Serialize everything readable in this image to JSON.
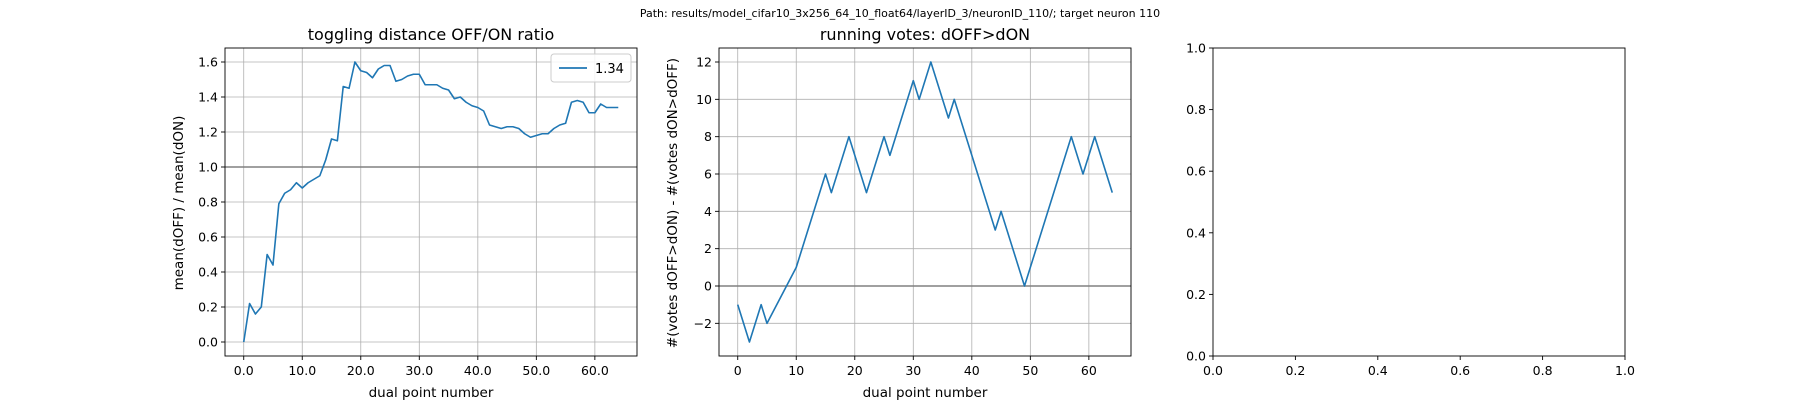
{
  "suptitle": "Path: results/model_cifar10_3x256_64_10_float64/layerID_3/neuronID_110/; target neuron 110",
  "chart_data": [
    {
      "type": "line",
      "title": "toggling distance OFF/ON ratio",
      "xlabel": "dual point number",
      "ylabel": "mean(dOFF) / mean(dON)",
      "xlim": [
        -3.2,
        67.2
      ],
      "ylim": [
        -0.08,
        1.68
      ],
      "xticks": [
        0,
        10,
        20,
        30,
        40,
        50,
        60
      ],
      "yticks": [
        0.0,
        0.2,
        0.4,
        0.6,
        0.8,
        1.0,
        1.2,
        1.4,
        1.6
      ],
      "tick_decimals": 1,
      "grid": true,
      "hline": 1.0,
      "legend": {
        "location": "top-right",
        "entries": [
          "1.34"
        ]
      },
      "series": [
        {
          "name": "1.34",
          "color": "#1f77b4",
          "x": [
            0,
            1,
            2,
            3,
            4,
            5,
            6,
            7,
            8,
            9,
            10,
            11,
            12,
            13,
            14,
            15,
            16,
            17,
            18,
            19,
            20,
            21,
            22,
            23,
            24,
            25,
            26,
            27,
            28,
            29,
            30,
            31,
            32,
            33,
            34,
            35,
            36,
            37,
            38,
            39,
            40,
            41,
            42,
            43,
            44,
            45,
            46,
            47,
            48,
            49,
            50,
            51,
            52,
            53,
            54,
            55,
            56,
            57,
            58,
            59,
            60,
            61,
            62,
            63,
            64
          ],
          "y": [
            0.0,
            0.22,
            0.16,
            0.2,
            0.5,
            0.44,
            0.79,
            0.85,
            0.87,
            0.91,
            0.88,
            0.91,
            0.93,
            0.95,
            1.04,
            1.16,
            1.15,
            1.46,
            1.45,
            1.6,
            1.55,
            1.54,
            1.51,
            1.56,
            1.58,
            1.58,
            1.49,
            1.5,
            1.52,
            1.53,
            1.53,
            1.47,
            1.47,
            1.47,
            1.45,
            1.44,
            1.39,
            1.4,
            1.37,
            1.35,
            1.34,
            1.32,
            1.24,
            1.23,
            1.22,
            1.23,
            1.23,
            1.22,
            1.19,
            1.17,
            1.18,
            1.19,
            1.19,
            1.22,
            1.24,
            1.25,
            1.37,
            1.38,
            1.37,
            1.31,
            1.31,
            1.36,
            1.34,
            1.34,
            1.34
          ]
        }
      ]
    },
    {
      "type": "line",
      "title": "running votes: dOFF>dON",
      "xlabel": "dual point number",
      "ylabel": "#(votes dOFF>dON) - #(votes dON>dOFF)",
      "xlim": [
        -3.2,
        67.2
      ],
      "ylim": [
        -3.75,
        12.75
      ],
      "xticks": [
        0,
        10,
        20,
        30,
        40,
        50,
        60
      ],
      "yticks": [
        -2,
        0,
        2,
        4,
        6,
        8,
        10,
        12
      ],
      "tick_decimals": 0,
      "grid": true,
      "hline": 0,
      "series": [
        {
          "color": "#1f77b4",
          "x": [
            0,
            2,
            4,
            5,
            10,
            15,
            16,
            19,
            22,
            25,
            26,
            30,
            31,
            33,
            36,
            37,
            44,
            45,
            49,
            57,
            59,
            61,
            64
          ],
          "y": [
            -1,
            -3,
            -1,
            -2,
            1,
            6,
            5,
            8,
            5,
            8,
            7,
            11,
            10,
            12,
            9,
            10,
            3,
            4,
            0,
            8,
            6,
            8,
            5
          ]
        }
      ]
    },
    {
      "type": "line",
      "title": "",
      "xlabel": "",
      "ylabel": "",
      "xlim": [
        0.0,
        1.0
      ],
      "ylim": [
        0.0,
        1.0
      ],
      "xticks": [
        0.0,
        0.2,
        0.4,
        0.6,
        0.8,
        1.0
      ],
      "yticks": [
        0.0,
        0.2,
        0.4,
        0.6,
        0.8,
        1.0
      ],
      "tick_decimals": 1,
      "grid": false,
      "series": []
    }
  ]
}
